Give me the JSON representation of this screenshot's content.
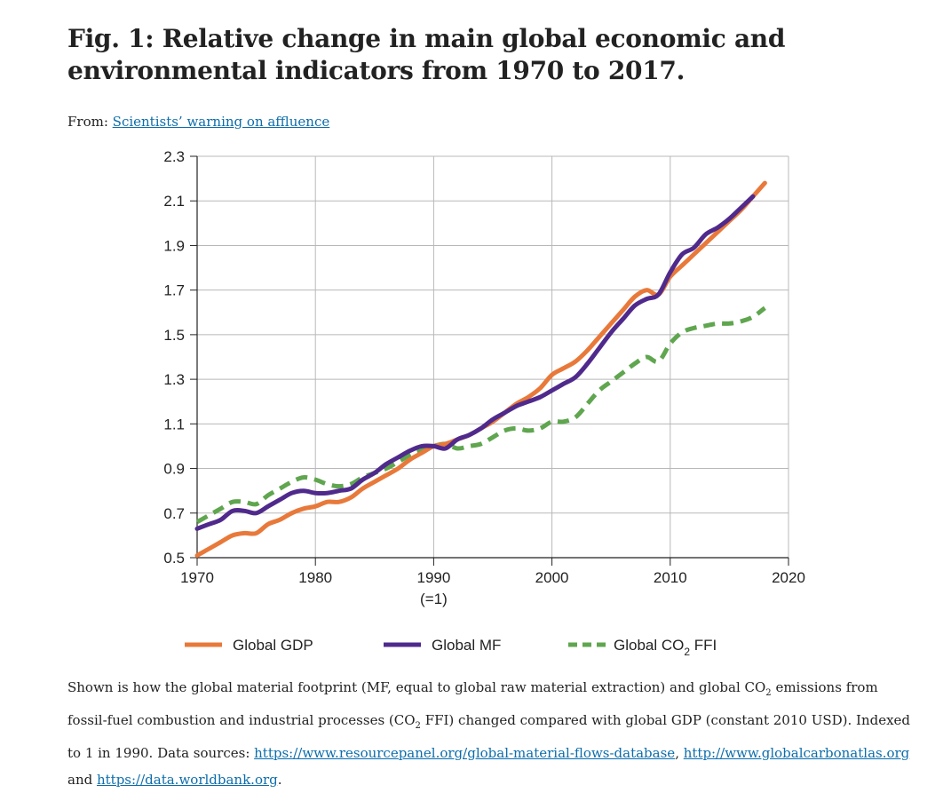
{
  "figure": {
    "title": "Fig. 1: Relative change in main global economic and environmental indicators from 1970 to 2017.",
    "from_label": "From:",
    "from_link": "Scientists’ warning on affluence"
  },
  "chart_data": {
    "type": "line",
    "xlim": [
      1970,
      2020
    ],
    "ylim": [
      0.5,
      2.3
    ],
    "x_ticks": [
      1970,
      1980,
      1990,
      2000,
      2010,
      2020
    ],
    "x_tick_labels": [
      "1970",
      "1980",
      "1990",
      "2000",
      "2010",
      "2020"
    ],
    "x_tick_sublabel": "(=1)",
    "y_ticks": [
      0.5,
      0.7,
      0.9,
      1.1,
      1.3,
      1.5,
      1.7,
      1.9,
      2.1,
      2.3
    ],
    "y_tick_labels": [
      "0.5",
      "0.7",
      "0.9",
      "1.1",
      "1.3",
      "1.5",
      "1.7",
      "1.9",
      "2.1",
      "2.3"
    ],
    "grid": true,
    "legend_position": "bottom",
    "series": [
      {
        "name": "Global GDP",
        "color": "#e8793a",
        "dash": "solid",
        "x": [
          1970,
          1971,
          1972,
          1973,
          1974,
          1975,
          1976,
          1977,
          1978,
          1979,
          1980,
          1981,
          1982,
          1983,
          1984,
          1985,
          1986,
          1987,
          1988,
          1989,
          1990,
          1991,
          1992,
          1993,
          1994,
          1995,
          1996,
          1997,
          1998,
          1999,
          2000,
          2001,
          2002,
          2003,
          2004,
          2005,
          2006,
          2007,
          2008,
          2009,
          2010,
          2011,
          2012,
          2013,
          2014,
          2015,
          2016,
          2017,
          2018
        ],
        "y": [
          0.51,
          0.54,
          0.57,
          0.6,
          0.61,
          0.61,
          0.65,
          0.67,
          0.7,
          0.72,
          0.73,
          0.75,
          0.75,
          0.77,
          0.81,
          0.84,
          0.87,
          0.9,
          0.94,
          0.97,
          1.0,
          1.01,
          1.03,
          1.05,
          1.08,
          1.11,
          1.15,
          1.19,
          1.22,
          1.26,
          1.32,
          1.35,
          1.38,
          1.43,
          1.49,
          1.55,
          1.61,
          1.67,
          1.7,
          1.68,
          1.76,
          1.81,
          1.86,
          1.91,
          1.96,
          2.01,
          2.06,
          2.12,
          2.18
        ]
      },
      {
        "name": "Global MF",
        "color": "#4f2a8c",
        "dash": "solid",
        "x": [
          1970,
          1971,
          1972,
          1973,
          1974,
          1975,
          1976,
          1977,
          1978,
          1979,
          1980,
          1981,
          1982,
          1983,
          1984,
          1985,
          1986,
          1987,
          1988,
          1989,
          1990,
          1991,
          1992,
          1993,
          1994,
          1995,
          1996,
          1997,
          1998,
          1999,
          2000,
          2001,
          2002,
          2003,
          2004,
          2005,
          2006,
          2007,
          2008,
          2009,
          2010,
          2011,
          2012,
          2013,
          2014,
          2015,
          2016,
          2017
        ],
        "y": [
          0.63,
          0.65,
          0.67,
          0.71,
          0.71,
          0.7,
          0.73,
          0.76,
          0.79,
          0.8,
          0.79,
          0.79,
          0.8,
          0.81,
          0.85,
          0.88,
          0.92,
          0.95,
          0.98,
          1.0,
          1.0,
          0.99,
          1.03,
          1.05,
          1.08,
          1.12,
          1.15,
          1.18,
          1.2,
          1.22,
          1.25,
          1.28,
          1.31,
          1.37,
          1.44,
          1.51,
          1.57,
          1.63,
          1.66,
          1.68,
          1.78,
          1.86,
          1.89,
          1.95,
          1.98,
          2.02,
          2.07,
          2.12
        ]
      },
      {
        "name": "Global CO2 FFI",
        "color": "#5fa64f",
        "dash": "dashed",
        "x": [
          1970,
          1971,
          1972,
          1973,
          1974,
          1975,
          1976,
          1977,
          1978,
          1979,
          1980,
          1981,
          1982,
          1983,
          1984,
          1985,
          1986,
          1987,
          1988,
          1989,
          1990,
          1991,
          1992,
          1993,
          1994,
          1995,
          1996,
          1997,
          1998,
          1999,
          2000,
          2001,
          2002,
          2003,
          2004,
          2005,
          2006,
          2007,
          2008,
          2009,
          2010,
          2011,
          2012,
          2013,
          2014,
          2015,
          2016,
          2017,
          2018
        ],
        "y": [
          0.66,
          0.69,
          0.72,
          0.75,
          0.75,
          0.74,
          0.78,
          0.81,
          0.84,
          0.86,
          0.85,
          0.83,
          0.82,
          0.83,
          0.86,
          0.88,
          0.9,
          0.93,
          0.96,
          0.98,
          1.0,
          1.01,
          0.99,
          1.0,
          1.01,
          1.04,
          1.07,
          1.08,
          1.07,
          1.08,
          1.11,
          1.11,
          1.13,
          1.19,
          1.25,
          1.29,
          1.33,
          1.37,
          1.4,
          1.38,
          1.46,
          1.51,
          1.53,
          1.54,
          1.55,
          1.55,
          1.56,
          1.58,
          1.62
        ]
      }
    ]
  },
  "legend": {
    "gdp": "Global GDP",
    "mf": "Global MF",
    "co2_prefix": "Global CO",
    "co2_sub": "2",
    "co2_suffix": " FFI"
  },
  "caption": {
    "t1": "Shown is how the global material footprint (MF, equal to global raw material extraction) and global CO",
    "sub1": "2",
    "t2": " emissions from fossil-fuel combustion and industrial processes (CO",
    "sub2": "2",
    "t3": " FFI) changed compared with global GDP (constant 2010 USD). Indexed to 1 in 1990. Data sources: ",
    "link1": "https://www.resourcepanel.org/global-material-flows-database",
    "t4": ", ",
    "link2": "http://www.globalcarbonatlas.org",
    "t5": " and ",
    "link3": "https://data.worldbank.org",
    "t6": "."
  }
}
